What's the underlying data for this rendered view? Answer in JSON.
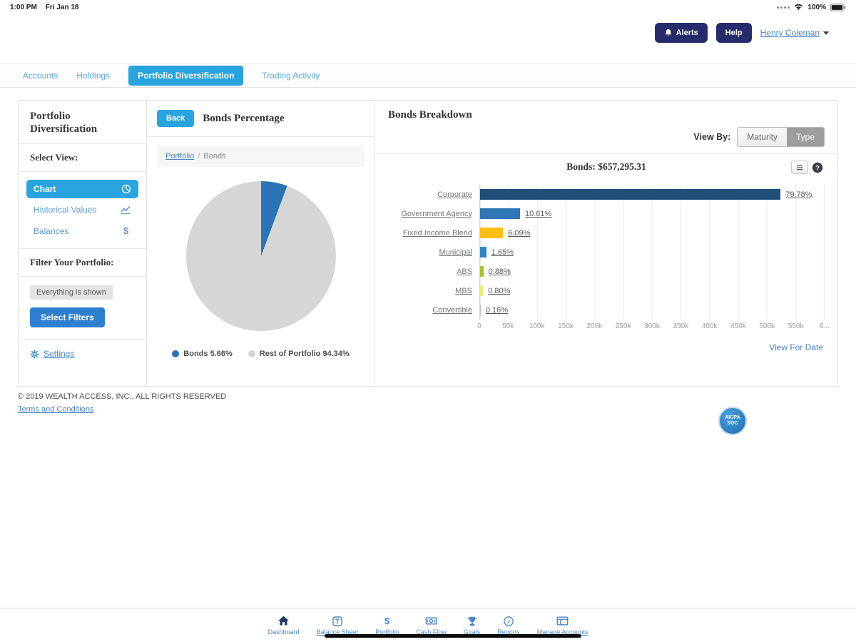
{
  "status_bar": {
    "time": "1:00 PM",
    "date": "Fri Jan 18",
    "battery_level": "100%"
  },
  "header": {
    "alerts_label": "Alerts",
    "help_label": "Help",
    "user_name": "Henry Coleman"
  },
  "nav": {
    "tabs": [
      {
        "label": "Accounts",
        "active": false
      },
      {
        "label": "Holdings",
        "active": false
      },
      {
        "label": "Portfolio Diversification",
        "active": true
      },
      {
        "label": "Trading Activity",
        "active": false
      }
    ]
  },
  "sidebar": {
    "title": "Portfolio Diversification",
    "select_view_label": "Select View:",
    "views": [
      {
        "label": "Chart",
        "icon": "pie-chart-icon",
        "active": true
      },
      {
        "label": "Historical Values",
        "icon": "line-chart-icon",
        "active": false
      },
      {
        "label": "Balances",
        "icon": "dollar-icon",
        "active": false
      }
    ],
    "filter_label": "Filter Your Portfolio:",
    "filter_status": "Everything is shown",
    "select_filters_label": "Select Filters",
    "settings_label": "Settings"
  },
  "pie_panel": {
    "back_label": "Back",
    "title": "Bonds Percentage",
    "breadcrumb": {
      "root": "Portfolio",
      "separator": "/",
      "current": "Bonds"
    },
    "chart_data": {
      "type": "pie",
      "title": "Bonds Percentage",
      "labels": [
        "Bonds",
        "Rest of Portfolio"
      ],
      "values": [
        5.66,
        94.34
      ],
      "colors": [
        "#2a74b5",
        "#d6d6d6"
      ],
      "legend": [
        "Bonds 5.66%",
        "Rest of Portfolio 94.34%"
      ],
      "legend_position": "bottom"
    }
  },
  "breakdown_panel": {
    "title": "Bonds Breakdown",
    "view_by_label": "View By:",
    "view_options": [
      "Maturity",
      "Type"
    ],
    "view_selected": "Type",
    "view_for_date_label": "View For Date",
    "chart_data": {
      "type": "bar",
      "orientation": "horizontal",
      "title": "Bonds: $657,295.31",
      "total_value": 657295.31,
      "categories": [
        "Corporate",
        "Government Agency",
        "Fixed Income Blend",
        "Municipal",
        "ABS",
        "MBS",
        "Convertible"
      ],
      "values_pct": [
        79.78,
        10.61,
        6.09,
        1.65,
        0.88,
        0.8,
        0.16
      ],
      "values_display": [
        "79.78%",
        "10.61%",
        "6.09%",
        "1.65%",
        "0.88%",
        "0.80%",
        "0.16%"
      ],
      "colors": [
        "#1f4e79",
        "#2e75b6",
        "#fdc010",
        "#2d87c8",
        "#a6c727",
        "#e9ed77",
        "#bdbdbd"
      ],
      "axis_max": 600000,
      "x_ticks": [
        "0",
        "50k",
        "100k",
        "150k",
        "200k",
        "250k",
        "300k",
        "350k",
        "400k",
        "450k",
        "500k",
        "550k",
        "6..."
      ],
      "grid": true
    }
  },
  "footer": {
    "copyright": "© 2019 WEALTH ACCESS, INC., ALL RIGHTS RESERVED",
    "terms_label": "Terms and Conditions",
    "badge_line1": "AICPA",
    "badge_line2": "SOC"
  },
  "bottom_nav": {
    "items": [
      {
        "label": "Dashboard",
        "icon": "home-icon",
        "active": true
      },
      {
        "label": "Balance Sheet",
        "icon": "balance-sheet-icon",
        "active": false
      },
      {
        "label": "Portfolio",
        "icon": "dollar-icon",
        "active": false
      },
      {
        "label": "Cash Flow",
        "icon": "cash-flow-icon",
        "active": false
      },
      {
        "label": "Goals",
        "icon": "goals-icon",
        "active": false
      },
      {
        "label": "Reports",
        "icon": "reports-icon",
        "active": false
      },
      {
        "label": "Manage Accounts",
        "icon": "manage-accounts-icon",
        "active": false
      }
    ]
  },
  "colors": {
    "accent_blue": "#29a4df",
    "navy_button": "#262c6b",
    "link_blue": "#4a86c8",
    "sidebar_link": "#5b9bd5",
    "filters_button": "#2e7fd0"
  }
}
